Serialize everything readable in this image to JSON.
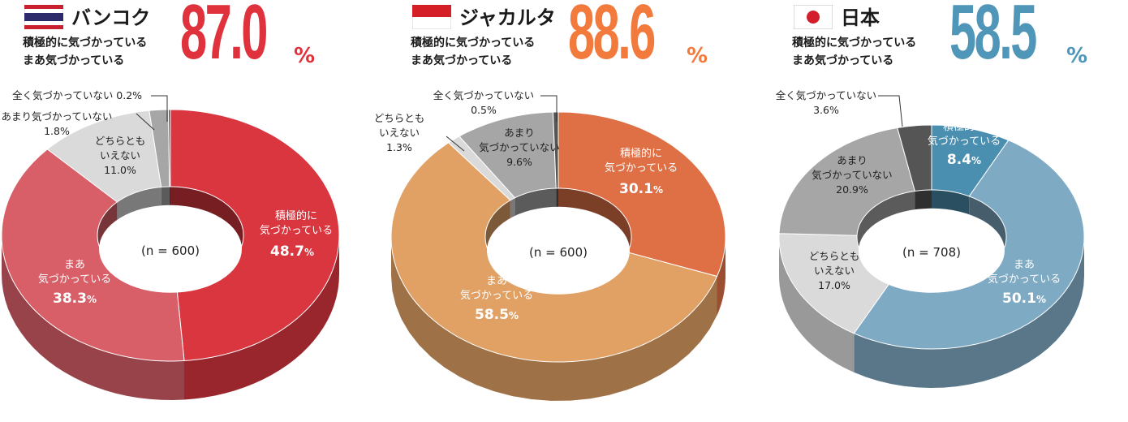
{
  "charts": [
    {
      "city": "バンコク",
      "summary_line1": "積極的に気づかっている",
      "summary_line2": "まあ気づかっている",
      "summary_value": "87.0",
      "summary_unit": "%",
      "n_label": "(n = 600)",
      "accent": "#e0323c",
      "flag": "thailand"
    },
    {
      "city": "ジャカルタ",
      "summary_line1": "積極的に気づかっている",
      "summary_line2": "まあ気づかっている",
      "summary_value": "88.6",
      "summary_unit": "%",
      "n_label": "(n = 600)",
      "accent": "#f27a3c",
      "flag": "indonesia"
    },
    {
      "city": "日本",
      "summary_line1": "積極的に気づかっている",
      "summary_line2": "まあ気づかっている",
      "summary_value": "58.5",
      "summary_unit": "%",
      "n_label": "(n = 708)",
      "accent": "#4f96b8",
      "flag": "japan"
    }
  ],
  "chart_data": [
    {
      "type": "pie",
      "title": "バンコク",
      "slices": [
        {
          "label": "積極的に気づかっている",
          "value": 48.7,
          "color": "#d9363f"
        },
        {
          "label": "まあ気づかっている",
          "value": 38.3,
          "color": "#d85f68"
        },
        {
          "label": "どちらともいえない",
          "value": 11.0,
          "color": "#dadada"
        },
        {
          "label": "あまり気づかっていない",
          "value": 1.8,
          "color": "#a6a6a6"
        },
        {
          "label": "全く気づかっていない",
          "value": 0.2,
          "color": "#555555"
        }
      ]
    },
    {
      "type": "pie",
      "title": "ジャカルタ",
      "slices": [
        {
          "label": "積極的に気づかっている",
          "value": 30.1,
          "color": "#df7046"
        },
        {
          "label": "まあ気づかっている",
          "value": 58.5,
          "color": "#e1a165"
        },
        {
          "label": "どちらともいえない",
          "value": 1.3,
          "color": "#dadada"
        },
        {
          "label": "あまり気づかっていない",
          "value": 9.6,
          "color": "#a6a6a6"
        },
        {
          "label": "全く気づかっていない",
          "value": 0.5,
          "color": "#555555"
        }
      ]
    },
    {
      "type": "pie",
      "title": "日本",
      "slices": [
        {
          "label": "積極的に気づかっている",
          "value": 8.4,
          "color": "#4a8fb0"
        },
        {
          "label": "まあ気づかっている",
          "value": 50.1,
          "color": "#7faac4"
        },
        {
          "label": "どちらともいえない",
          "value": 17.0,
          "color": "#dadada"
        },
        {
          "label": "あまり気づかっていない",
          "value": 20.9,
          "color": "#a6a6a6"
        },
        {
          "label": "全く気づかっていない",
          "value": 3.6,
          "color": "#555555"
        }
      ]
    }
  ]
}
